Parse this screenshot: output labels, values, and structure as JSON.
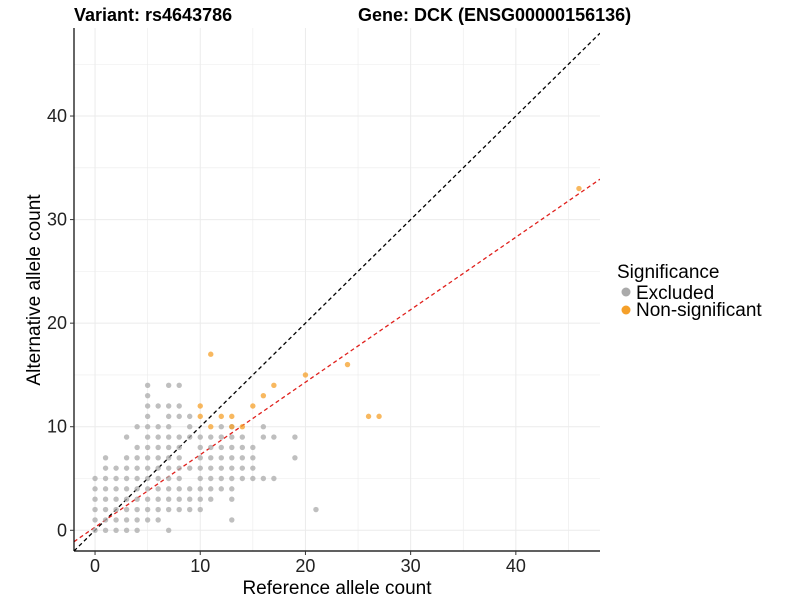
{
  "chart_data": {
    "type": "scatter",
    "title_left": "Variant: rs4643786",
    "title_right": "Gene: DCK (ENSG00000156136)",
    "xlabel": "Reference allele count",
    "ylabel": "Alternative allele count",
    "xlim": [
      -2,
      48
    ],
    "ylim": [
      -2,
      48.5
    ],
    "xticks": [
      0,
      10,
      20,
      30,
      40
    ],
    "yticks": [
      0,
      10,
      20,
      30,
      40
    ],
    "grid": true,
    "legend": {
      "title": "Significance",
      "position": "right",
      "items": [
        {
          "label": "Excluded",
          "color": "#aaaaaa"
        },
        {
          "label": "Non-significant",
          "color": "#f5a02a"
        }
      ]
    },
    "reference_lines": [
      {
        "slope": 1,
        "intercept": 0,
        "color": "#000000",
        "style": "dashed"
      },
      {
        "slope": 0.7,
        "intercept": 0.3,
        "color": "#e0201c",
        "style": "dashed"
      }
    ],
    "series": [
      {
        "name": "Excluded",
        "color": "#aaaaaa",
        "points": [
          [
            0,
            0
          ],
          [
            0,
            1
          ],
          [
            0,
            2
          ],
          [
            0,
            3
          ],
          [
            0,
            4
          ],
          [
            0,
            5
          ],
          [
            1,
            0
          ],
          [
            1,
            1
          ],
          [
            1,
            2
          ],
          [
            1,
            3
          ],
          [
            1,
            4
          ],
          [
            1,
            5
          ],
          [
            1,
            6
          ],
          [
            1,
            7
          ],
          [
            2,
            0
          ],
          [
            2,
            1
          ],
          [
            2,
            2
          ],
          [
            2,
            3
          ],
          [
            2,
            4
          ],
          [
            2,
            5
          ],
          [
            2,
            6
          ],
          [
            3,
            0
          ],
          [
            3,
            1
          ],
          [
            3,
            2
          ],
          [
            3,
            3
          ],
          [
            3,
            4
          ],
          [
            3,
            5
          ],
          [
            3,
            6
          ],
          [
            3,
            7
          ],
          [
            3,
            9
          ],
          [
            4,
            0
          ],
          [
            4,
            1
          ],
          [
            4,
            2
          ],
          [
            4,
            3
          ],
          [
            4,
            4
          ],
          [
            4,
            5
          ],
          [
            4,
            6
          ],
          [
            4,
            7
          ],
          [
            4,
            8
          ],
          [
            4,
            10
          ],
          [
            5,
            1
          ],
          [
            5,
            2
          ],
          [
            5,
            3
          ],
          [
            5,
            4
          ],
          [
            5,
            5
          ],
          [
            5,
            6
          ],
          [
            5,
            7
          ],
          [
            5,
            8
          ],
          [
            5,
            9
          ],
          [
            5,
            10
          ],
          [
            5,
            11
          ],
          [
            5,
            12
          ],
          [
            5,
            13
          ],
          [
            5,
            14
          ],
          [
            6,
            1
          ],
          [
            6,
            2
          ],
          [
            6,
            3
          ],
          [
            6,
            4
          ],
          [
            6,
            5
          ],
          [
            6,
            6
          ],
          [
            6,
            7
          ],
          [
            6,
            8
          ],
          [
            6,
            9
          ],
          [
            6,
            10
          ],
          [
            6,
            12
          ],
          [
            7,
            0
          ],
          [
            7,
            2
          ],
          [
            7,
            3
          ],
          [
            7,
            4
          ],
          [
            7,
            5
          ],
          [
            7,
            6
          ],
          [
            7,
            7
          ],
          [
            7,
            8
          ],
          [
            7,
            9
          ],
          [
            7,
            10
          ],
          [
            7,
            11
          ],
          [
            7,
            12
          ],
          [
            7,
            14
          ],
          [
            8,
            2
          ],
          [
            8,
            3
          ],
          [
            8,
            4
          ],
          [
            8,
            5
          ],
          [
            8,
            6
          ],
          [
            8,
            7
          ],
          [
            8,
            8
          ],
          [
            8,
            9
          ],
          [
            8,
            11
          ],
          [
            8,
            12
          ],
          [
            8,
            14
          ],
          [
            9,
            2
          ],
          [
            9,
            3
          ],
          [
            9,
            4
          ],
          [
            9,
            6
          ],
          [
            9,
            9
          ],
          [
            9,
            10
          ],
          [
            9,
            11
          ],
          [
            10,
            2
          ],
          [
            10,
            3
          ],
          [
            10,
            4
          ],
          [
            10,
            5
          ],
          [
            10,
            6
          ],
          [
            10,
            7
          ],
          [
            10,
            8
          ],
          [
            10,
            9
          ],
          [
            11,
            3
          ],
          [
            11,
            4
          ],
          [
            11,
            5
          ],
          [
            11,
            6
          ],
          [
            11,
            7
          ],
          [
            11,
            8
          ],
          [
            11,
            9
          ],
          [
            12,
            4
          ],
          [
            12,
            5
          ],
          [
            12,
            6
          ],
          [
            12,
            7
          ],
          [
            12,
            8
          ],
          [
            12,
            9
          ],
          [
            12,
            10
          ],
          [
            13,
            1
          ],
          [
            13,
            3
          ],
          [
            13,
            4
          ],
          [
            13,
            5
          ],
          [
            13,
            6
          ],
          [
            13,
            7
          ],
          [
            13,
            8
          ],
          [
            13,
            9
          ],
          [
            13,
            10
          ],
          [
            14,
            5
          ],
          [
            14,
            6
          ],
          [
            14,
            7
          ],
          [
            14,
            8
          ],
          [
            14,
            9
          ],
          [
            15,
            5
          ],
          [
            15,
            6
          ],
          [
            15,
            7
          ],
          [
            15,
            8
          ],
          [
            16,
            5
          ],
          [
            16,
            9
          ],
          [
            16,
            10
          ],
          [
            17,
            5
          ],
          [
            17,
            9
          ],
          [
            19,
            7
          ],
          [
            19,
            9
          ],
          [
            21,
            2
          ]
        ]
      },
      {
        "name": "Non-significant",
        "color": "#f5a02a",
        "points": [
          [
            10,
            11
          ],
          [
            10,
            12
          ],
          [
            11,
            10
          ],
          [
            11,
            17
          ],
          [
            12,
            11
          ],
          [
            13,
            10
          ],
          [
            13,
            11
          ],
          [
            14,
            10
          ],
          [
            15,
            12
          ],
          [
            16,
            13
          ],
          [
            17,
            14
          ],
          [
            20,
            15
          ],
          [
            24,
            16
          ],
          [
            26,
            11
          ],
          [
            27,
            11
          ],
          [
            46,
            33
          ]
        ]
      }
    ]
  }
}
